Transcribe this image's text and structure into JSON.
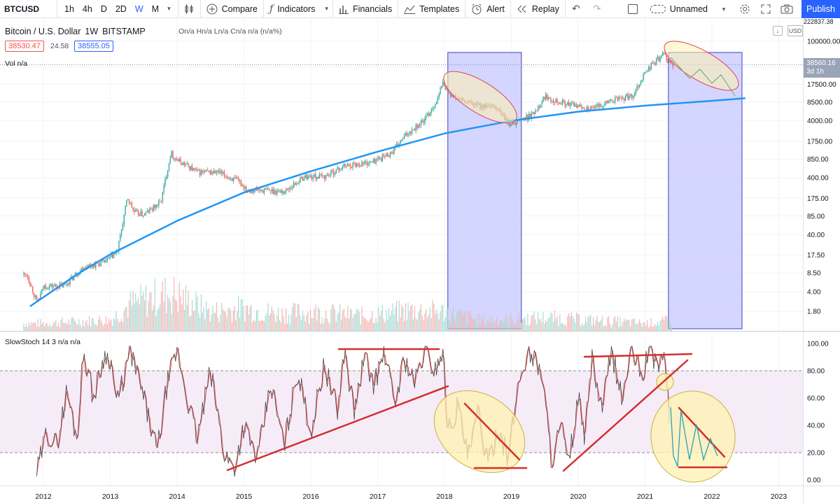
{
  "toolbar": {
    "symbol": "BTCUSD",
    "intervals": [
      {
        "label": "1h",
        "active": false
      },
      {
        "label": "4h",
        "active": false
      },
      {
        "label": "D",
        "active": false
      },
      {
        "label": "2D",
        "active": false
      },
      {
        "label": "W",
        "active": true
      },
      {
        "label": "M",
        "active": false
      }
    ],
    "compare_label": "Compare",
    "indicators_label": "Indicators",
    "financials_label": "Financials",
    "templates_label": "Templates",
    "alert_label": "Alert",
    "replay_label": "Replay",
    "layout_name": "Unnamed",
    "publish_label": "Publish"
  },
  "legend": {
    "title": "Bitcoin / U.S. Dollar",
    "interval": "1W",
    "exchange": "BITSTAMP",
    "ohlc": "On/a Hn/a Ln/a Cn/a n/a (n/a%)",
    "bid": "38530.47",
    "spread": "24.58",
    "ask": "38555.05",
    "currency": "USD",
    "top_price_cut": "222837.38"
  },
  "volume": {
    "label": "Vol",
    "value": "n/a"
  },
  "stoch": {
    "label": "SlowStoch",
    "params": "14 3",
    "v1": "n/a",
    "v2": "n/a"
  },
  "last_price": {
    "value": "38560.16",
    "countdown": "3d 1h"
  },
  "colors": {
    "up": "#26a69a",
    "down": "#ef5350",
    "accent": "#2962ff",
    "trend_blue": "#2196f3",
    "annotation_red": "#d32f2f",
    "box_fill": "#c5c8ff",
    "ellipse_fill": "#fff2b0"
  },
  "chart_data": {
    "type": "line",
    "title": "Bitcoin / U.S. Dollar 1W BITSTAMP",
    "x_ticks": [
      "2012",
      "2013",
      "2014",
      "2015",
      "2016",
      "2017",
      "2018",
      "2019",
      "2020",
      "2021",
      "2022",
      "2023"
    ],
    "price_ticks": [
      "100000.00",
      "35000.00",
      "17500.00",
      "8500.00",
      "4000.00",
      "1750.00",
      "850.00",
      "400.00",
      "175.00",
      "85.00",
      "40.00",
      "17.50",
      "8.50",
      "4.00",
      "1.80"
    ],
    "price_scale": "log",
    "stoch_ticks": [
      "100.00",
      "80.00",
      "60.00",
      "40.00",
      "20.00",
      "0.00"
    ],
    "stoch_range": [
      0,
      100
    ],
    "stoch_bands": [
      20,
      80
    ],
    "price_series": {
      "x": [
        2011.75,
        2011.9,
        2012.0,
        2012.3,
        2012.6,
        2012.9,
        2013.1,
        2013.25,
        2013.35,
        2013.5,
        2013.75,
        2013.9,
        2014.0,
        2014.1,
        2014.3,
        2014.6,
        2014.9,
        2015.05,
        2015.3,
        2015.6,
        2015.9,
        2016.2,
        2016.5,
        2016.9,
        2017.2,
        2017.45,
        2017.7,
        2017.9,
        2017.96,
        2018.1,
        2018.3,
        2018.5,
        2018.8,
        2018.95,
        2019.3,
        2019.5,
        2019.8,
        2020.0,
        2020.2,
        2020.5,
        2020.8,
        2021.0,
        2021.1,
        2021.28,
        2021.4,
        2021.55,
        2021.8
      ],
      "values": [
        8,
        2.5,
        5,
        5,
        11,
        13,
        20,
        180,
        100,
        90,
        150,
        1100,
        800,
        700,
        500,
        500,
        350,
        250,
        240,
        230,
        420,
        420,
        650,
        750,
        1100,
        2500,
        4200,
        10000,
        19000,
        11000,
        8500,
        7500,
        6500,
        3500,
        5000,
        11000,
        8000,
        7200,
        6500,
        9200,
        11000,
        29000,
        40000,
        60000,
        37000,
        35000,
        38560
      ]
    },
    "trend_curve": {
      "x": [
        2011.8,
        2012.5,
        2013.0,
        2014.0,
        2015.0,
        2016.0,
        2017.0,
        2018.0,
        2019.0,
        2020.0,
        2021.0,
        2022.0,
        2022.5
      ],
      "values": [
        2.2,
        8,
        18,
        70,
        220,
        520,
        1150,
        2400,
        4000,
        5800,
        7400,
        9000,
        10000
      ]
    },
    "stoch_series": {
      "x": [
        2011.9,
        2012.05,
        2012.2,
        2012.35,
        2012.5,
        2012.6,
        2012.75,
        2012.9,
        2013.0,
        2013.1,
        2013.3,
        2013.5,
        2013.7,
        2013.85,
        2014.0,
        2014.15,
        2014.3,
        2014.5,
        2014.7,
        2014.85,
        2015.0,
        2015.2,
        2015.4,
        2015.6,
        2015.8,
        2016.0,
        2016.2,
        2016.4,
        2016.5,
        2016.65,
        2016.8,
        2016.95,
        2017.1,
        2017.25,
        2017.4,
        2017.55,
        2017.7,
        2017.85,
        2017.97,
        2018.05,
        2018.2,
        2018.35,
        2018.5,
        2018.65,
        2018.8,
        2018.95,
        2019.1,
        2019.25,
        2019.45,
        2019.6,
        2019.75,
        2019.85,
        2020.0,
        2020.1,
        2020.2,
        2020.35,
        2020.5,
        2020.65,
        2020.8,
        2020.95,
        2021.05,
        2021.2,
        2021.3,
        2021.38
      ],
      "values": [
        5,
        35,
        25,
        65,
        30,
        95,
        60,
        90,
        90,
        55,
        95,
        60,
        20,
        70,
        95,
        60,
        30,
        80,
        20,
        8,
        40,
        15,
        70,
        25,
        80,
        35,
        85,
        50,
        95,
        50,
        90,
        70,
        95,
        55,
        90,
        70,
        95,
        80,
        95,
        35,
        55,
        15,
        50,
        10,
        40,
        15,
        70,
        95,
        80,
        15,
        40,
        8,
        60,
        30,
        90,
        50,
        95,
        60,
        95,
        75,
        95,
        85,
        90,
        30
      ]
    },
    "volume_series": {
      "x": [
        2012.0,
        2012.5,
        2013.0,
        2013.3,
        2013.9,
        2014.5,
        2015.0,
        2015.5,
        2016.0,
        2016.8,
        2017.5,
        2018.0,
        2018.5,
        2019.0,
        2019.5,
        2020.0,
        2020.5,
        2021.0,
        2021.3
      ],
      "values": [
        0.2,
        0.25,
        0.3,
        0.7,
        1.0,
        0.5,
        0.6,
        0.45,
        0.5,
        0.4,
        0.55,
        0.5,
        0.3,
        0.3,
        0.35,
        0.3,
        0.25,
        0.2,
        0.25
      ]
    },
    "annotations": [
      {
        "type": "rect",
        "x1": 2018.05,
        "x2": 2019.15,
        "label": "bear-market-zone-2018"
      },
      {
        "type": "rect",
        "x1": 2021.35,
        "x2": 2022.45,
        "label": "bear-market-zone-2021"
      }
    ]
  }
}
